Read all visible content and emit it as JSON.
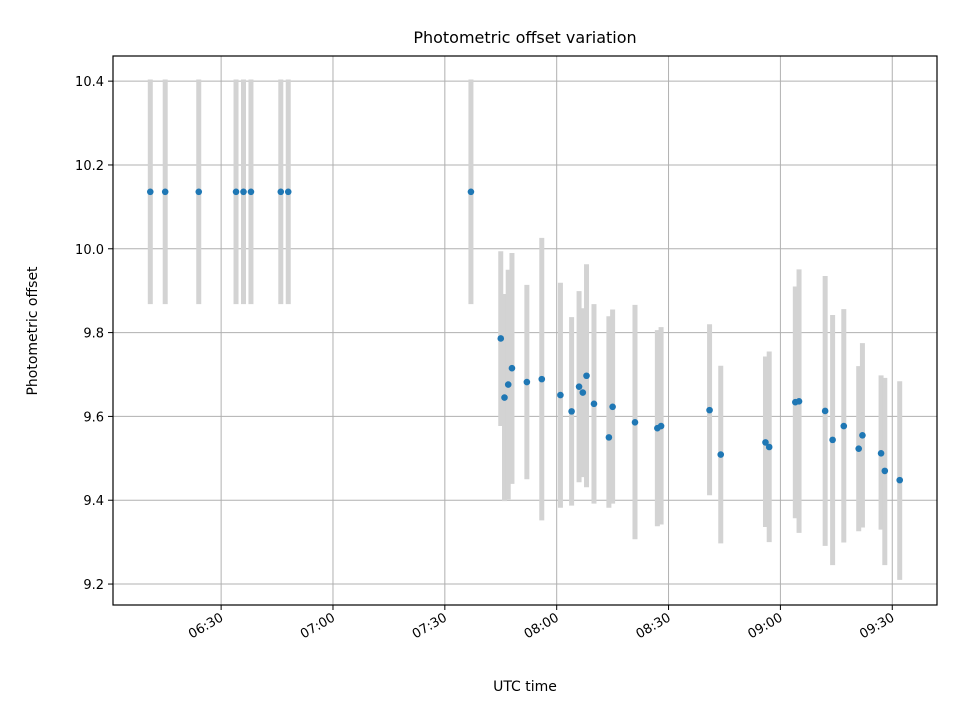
{
  "chart_data": {
    "type": "scatter",
    "title": "Photometric offset variation",
    "xlabel": "UTC time",
    "ylabel": "Photometric offset",
    "x_unit": "time HH:MM (UTC)",
    "xlim": [
      "06:01",
      "09:42"
    ],
    "ylim": [
      9.15,
      10.46
    ],
    "grid": true,
    "x_ticks": [
      "06:30",
      "07:00",
      "07:30",
      "08:00",
      "08:30",
      "09:00",
      "09:30"
    ],
    "y_ticks": [
      "9.2",
      "9.4",
      "9.6",
      "9.8",
      "10.0",
      "10.2",
      "10.4"
    ],
    "marker_color": "#1f77b4",
    "errorbar_color": "#d3d3d3",
    "series": [
      {
        "points": [
          {
            "x": "06:11",
            "y": 10.136,
            "low": 9.868,
            "high": 10.404
          },
          {
            "x": "06:15",
            "y": 10.136,
            "low": 9.868,
            "high": 10.404
          },
          {
            "x": "06:24",
            "y": 10.136,
            "low": 9.868,
            "high": 10.404
          },
          {
            "x": "06:34",
            "y": 10.136,
            "low": 9.868,
            "high": 10.404
          },
          {
            "x": "06:36",
            "y": 10.136,
            "low": 9.868,
            "high": 10.404
          },
          {
            "x": "06:38",
            "y": 10.136,
            "low": 9.868,
            "high": 10.404
          },
          {
            "x": "06:46",
            "y": 10.136,
            "low": 9.868,
            "high": 10.404
          },
          {
            "x": "06:48",
            "y": 10.136,
            "low": 9.868,
            "high": 10.404
          },
          {
            "x": "07:37",
            "y": 10.136,
            "low": 9.868,
            "high": 10.404
          },
          {
            "x": "07:45",
            "y": 9.786,
            "low": 9.577,
            "high": 9.994
          },
          {
            "x": "07:46",
            "y": 9.645,
            "low": 9.398,
            "high": 9.892
          },
          {
            "x": "07:47",
            "y": 9.676,
            "low": 9.402,
            "high": 9.95
          },
          {
            "x": "07:48",
            "y": 9.715,
            "low": 9.439,
            "high": 9.99
          },
          {
            "x": "07:52",
            "y": 9.682,
            "low": 9.45,
            "high": 9.914
          },
          {
            "x": "07:56",
            "y": 9.689,
            "low": 9.352,
            "high": 10.026
          },
          {
            "x": "08:01",
            "y": 9.651,
            "low": 9.382,
            "high": 9.919
          },
          {
            "x": "08:04",
            "y": 9.612,
            "low": 9.387,
            "high": 9.837
          },
          {
            "x": "08:06",
            "y": 9.671,
            "low": 9.443,
            "high": 9.899
          },
          {
            "x": "08:07",
            "y": 9.657,
            "low": 9.455,
            "high": 9.858
          },
          {
            "x": "08:08",
            "y": 9.697,
            "low": 9.431,
            "high": 9.963
          },
          {
            "x": "08:10",
            "y": 9.63,
            "low": 9.392,
            "high": 9.868
          },
          {
            "x": "08:14",
            "y": 9.55,
            "low": 9.382,
            "high": 9.839
          },
          {
            "x": "08:15",
            "y": 9.623,
            "low": 9.392,
            "high": 9.855
          },
          {
            "x": "08:21",
            "y": 9.586,
            "low": 9.307,
            "high": 9.866
          },
          {
            "x": "08:27",
            "y": 9.572,
            "low": 9.338,
            "high": 9.806
          },
          {
            "x": "08:28",
            "y": 9.577,
            "low": 9.342,
            "high": 9.813
          },
          {
            "x": "08:41",
            "y": 9.615,
            "low": 9.412,
            "high": 9.82
          },
          {
            "x": "08:44",
            "y": 9.509,
            "low": 9.297,
            "high": 9.721
          },
          {
            "x": "08:56",
            "y": 9.538,
            "low": 9.336,
            "high": 9.743
          },
          {
            "x": "08:57",
            "y": 9.527,
            "low": 9.3,
            "high": 9.755
          },
          {
            "x": "09:04",
            "y": 9.634,
            "low": 9.357,
            "high": 9.91
          },
          {
            "x": "09:05",
            "y": 9.636,
            "low": 9.322,
            "high": 9.951
          },
          {
            "x": "09:12",
            "y": 9.613,
            "low": 9.291,
            "high": 9.935
          },
          {
            "x": "09:14",
            "y": 9.544,
            "low": 9.245,
            "high": 9.842
          },
          {
            "x": "09:17",
            "y": 9.577,
            "low": 9.299,
            "high": 9.856
          },
          {
            "x": "09:21",
            "y": 9.523,
            "low": 9.326,
            "high": 9.72
          },
          {
            "x": "09:22",
            "y": 9.555,
            "low": 9.335,
            "high": 9.775
          },
          {
            "x": "09:27",
            "y": 9.512,
            "low": 9.33,
            "high": 9.698
          },
          {
            "x": "09:28",
            "y": 9.47,
            "low": 9.245,
            "high": 9.692
          },
          {
            "x": "09:32",
            "y": 9.448,
            "low": 9.21,
            "high": 9.684
          }
        ]
      }
    ]
  }
}
